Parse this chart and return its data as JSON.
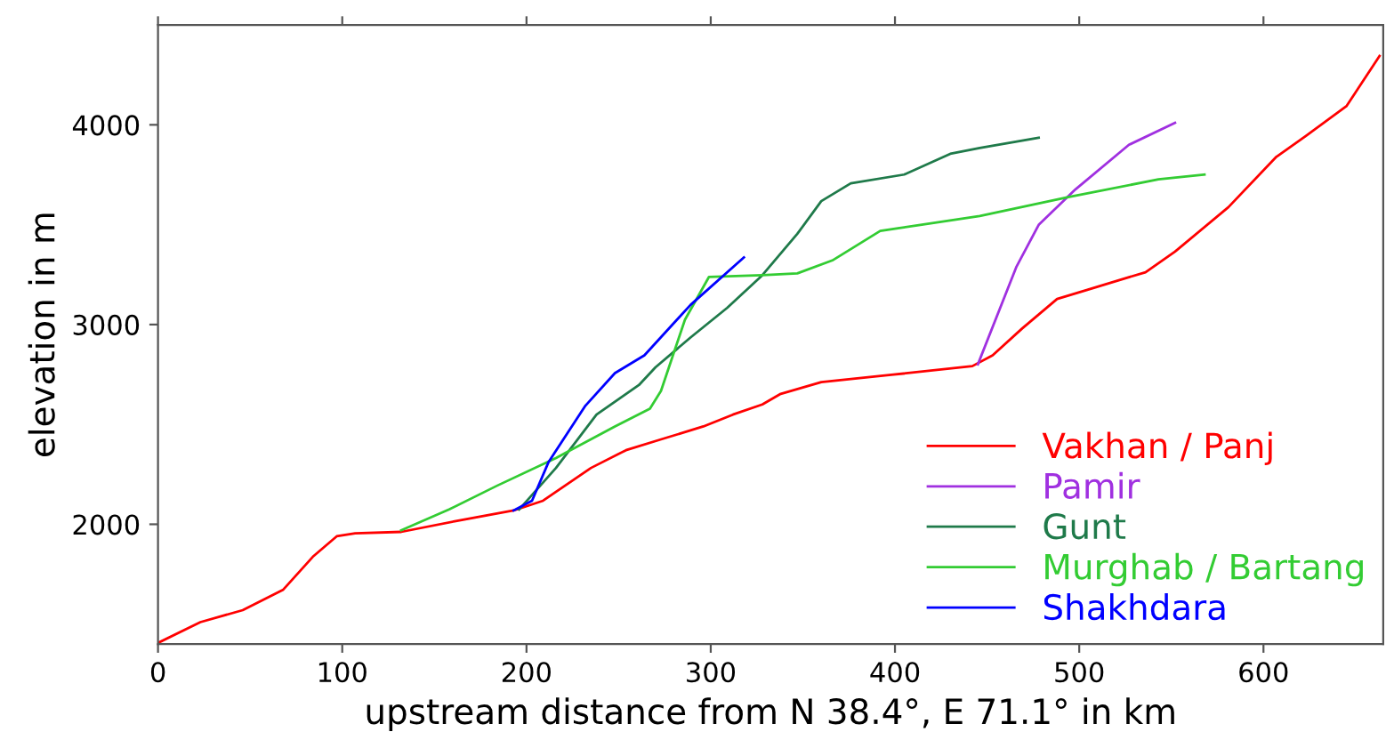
{
  "chart_data": {
    "type": "line",
    "xlabel": "upstream distance from N 38.4°, E 71.1° in km",
    "ylabel": "elevation in m",
    "xlim": [
      0,
      665
    ],
    "xticks": [
      0,
      100,
      200,
      300,
      400,
      500,
      600
    ],
    "ylim": [
      1400,
      4500
    ],
    "yticks": [
      2000,
      3000,
      4000
    ],
    "grid": false,
    "legend": "bottom right",
    "series": [
      {
        "name": "Vakhan / Panj",
        "color": "#ff0000",
        "x": [
          0,
          23,
          46,
          68,
          84,
          97,
          107,
          132,
          161,
          193,
          209,
          235,
          254,
          273,
          296,
          312,
          328,
          338,
          360,
          398,
          442,
          453,
          469,
          488,
          504,
          536,
          552,
          581,
          607,
          623,
          645,
          663
        ],
        "values": [
          1406,
          1510,
          1570,
          1673,
          1837,
          1940,
          1955,
          1962,
          2015,
          2069,
          2118,
          2282,
          2371,
          2425,
          2490,
          2549,
          2600,
          2653,
          2712,
          2748,
          2792,
          2846,
          2980,
          3128,
          3173,
          3262,
          3365,
          3588,
          3840,
          3944,
          4093,
          4345
        ]
      },
      {
        "name": "Pamir",
        "color": "#a030e0",
        "x": [
          445,
          466,
          478,
          498,
          527,
          552
        ],
        "values": [
          2801,
          3291,
          3499,
          3677,
          3900,
          4010
        ]
      },
      {
        "name": "Gunt",
        "color": "#1f7a4a",
        "x": [
          196,
          216,
          238,
          261,
          270,
          289,
          309,
          328,
          347,
          360,
          376,
          405,
          430,
          446,
          478
        ],
        "values": [
          2074,
          2282,
          2549,
          2697,
          2786,
          2935,
          3084,
          3247,
          3454,
          3618,
          3707,
          3751,
          3855,
          3884,
          3935
        ]
      },
      {
        "name": "Murghab / Bartang",
        "color": "#33cc33",
        "x": [
          132,
          158,
          184,
          216,
          248,
          267,
          273,
          286,
          299,
          328,
          347,
          366,
          392,
          446,
          494,
          543,
          568
        ],
        "values": [
          1970,
          2074,
          2193,
          2332,
          2490,
          2579,
          2668,
          3024,
          3238,
          3247,
          3256,
          3321,
          3469,
          3543,
          3638,
          3727,
          3751
        ]
      },
      {
        "name": "Shakhdara",
        "color": "#0000ff",
        "x": [
          193,
          203,
          212,
          232,
          248,
          264,
          289,
          318
        ],
        "values": [
          2069,
          2118,
          2312,
          2594,
          2757,
          2846,
          3098,
          3336
        ]
      }
    ]
  }
}
